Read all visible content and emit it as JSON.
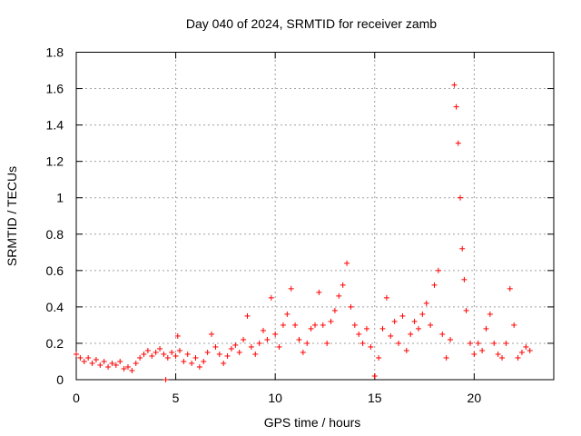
{
  "chart_data": {
    "type": "scatter",
    "title": "Day 040 of 2024, SRMTID for receiver zamb",
    "xlabel": "GPS time / hours",
    "ylabel": "SRMTID / TECUs",
    "xlim": [
      0,
      24
    ],
    "ylim": [
      0,
      1.8
    ],
    "xticks": [
      0,
      5,
      10,
      15,
      20
    ],
    "xtick_labels": [
      "0",
      "5",
      "10",
      "15",
      "20"
    ],
    "yticks": [
      0,
      0.2,
      0.4,
      0.6,
      0.8,
      1.0,
      1.2,
      1.4,
      1.6,
      1.8
    ],
    "ytick_labels": [
      "0",
      "0.2",
      "0.4",
      "0.6",
      "0.8",
      "1",
      "1.2",
      "1.4",
      "1.6",
      "1.8"
    ],
    "grid": true,
    "marker": "plus",
    "series": [
      {
        "name": "SRMTID",
        "color": "#ff0000",
        "points": [
          [
            0.0,
            0.14
          ],
          [
            0.2,
            0.12
          ],
          [
            0.4,
            0.1
          ],
          [
            0.6,
            0.12
          ],
          [
            0.8,
            0.09
          ],
          [
            1.0,
            0.11
          ],
          [
            1.2,
            0.08
          ],
          [
            1.4,
            0.1
          ],
          [
            1.6,
            0.07
          ],
          [
            1.8,
            0.09
          ],
          [
            2.0,
            0.08
          ],
          [
            2.2,
            0.1
          ],
          [
            2.4,
            0.06
          ],
          [
            2.6,
            0.07
          ],
          [
            2.8,
            0.05
          ],
          [
            3.0,
            0.09
          ],
          [
            3.2,
            0.12
          ],
          [
            3.4,
            0.14
          ],
          [
            3.6,
            0.16
          ],
          [
            3.8,
            0.13
          ],
          [
            4.0,
            0.15
          ],
          [
            4.2,
            0.17
          ],
          [
            4.4,
            0.14
          ],
          [
            4.5,
            0.0
          ],
          [
            4.6,
            0.12
          ],
          [
            4.8,
            0.15
          ],
          [
            5.0,
            0.13
          ],
          [
            5.1,
            0.24
          ],
          [
            5.2,
            0.16
          ],
          [
            5.4,
            0.1
          ],
          [
            5.6,
            0.14
          ],
          [
            5.8,
            0.09
          ],
          [
            6.0,
            0.12
          ],
          [
            6.2,
            0.07
          ],
          [
            6.4,
            0.1
          ],
          [
            6.6,
            0.15
          ],
          [
            6.8,
            0.25
          ],
          [
            7.0,
            0.18
          ],
          [
            7.2,
            0.14
          ],
          [
            7.4,
            0.09
          ],
          [
            7.6,
            0.13
          ],
          [
            7.8,
            0.17
          ],
          [
            8.0,
            0.19
          ],
          [
            8.2,
            0.15
          ],
          [
            8.4,
            0.22
          ],
          [
            8.6,
            0.35
          ],
          [
            8.8,
            0.18
          ],
          [
            9.0,
            0.14
          ],
          [
            9.2,
            0.2
          ],
          [
            9.4,
            0.27
          ],
          [
            9.6,
            0.22
          ],
          [
            9.8,
            0.45
          ],
          [
            10.0,
            0.25
          ],
          [
            10.2,
            0.18
          ],
          [
            10.4,
            0.3
          ],
          [
            10.6,
            0.36
          ],
          [
            10.8,
            0.5
          ],
          [
            11.0,
            0.3
          ],
          [
            11.2,
            0.22
          ],
          [
            11.4,
            0.15
          ],
          [
            11.6,
            0.2
          ],
          [
            11.8,
            0.28
          ],
          [
            12.0,
            0.3
          ],
          [
            12.2,
            0.48
          ],
          [
            12.4,
            0.3
          ],
          [
            12.6,
            0.2
          ],
          [
            12.8,
            0.32
          ],
          [
            13.0,
            0.38
          ],
          [
            13.2,
            0.46
          ],
          [
            13.4,
            0.52
          ],
          [
            13.6,
            0.64
          ],
          [
            13.8,
            0.4
          ],
          [
            14.0,
            0.3
          ],
          [
            14.2,
            0.25
          ],
          [
            14.4,
            0.2
          ],
          [
            14.6,
            0.28
          ],
          [
            14.8,
            0.18
          ],
          [
            15.0,
            0.02
          ],
          [
            15.2,
            0.12
          ],
          [
            15.4,
            0.28
          ],
          [
            15.6,
            0.45
          ],
          [
            15.8,
            0.24
          ],
          [
            16.0,
            0.32
          ],
          [
            16.2,
            0.2
          ],
          [
            16.4,
            0.35
          ],
          [
            16.6,
            0.16
          ],
          [
            16.8,
            0.25
          ],
          [
            17.0,
            0.32
          ],
          [
            17.2,
            0.28
          ],
          [
            17.4,
            0.36
          ],
          [
            17.6,
            0.42
          ],
          [
            17.8,
            0.3
          ],
          [
            18.0,
            0.52
          ],
          [
            18.2,
            0.6
          ],
          [
            18.4,
            0.25
          ],
          [
            18.6,
            0.12
          ],
          [
            18.8,
            0.22
          ],
          [
            19.0,
            1.62
          ],
          [
            19.1,
            1.5
          ],
          [
            19.2,
            1.3
          ],
          [
            19.3,
            1.0
          ],
          [
            19.4,
            0.72
          ],
          [
            19.5,
            0.55
          ],
          [
            19.6,
            0.38
          ],
          [
            19.8,
            0.2
          ],
          [
            20.0,
            0.14
          ],
          [
            20.2,
            0.2
          ],
          [
            20.4,
            0.16
          ],
          [
            20.6,
            0.28
          ],
          [
            20.8,
            0.36
          ],
          [
            21.0,
            0.2
          ],
          [
            21.2,
            0.14
          ],
          [
            21.4,
            0.12
          ],
          [
            21.6,
            0.2
          ],
          [
            21.8,
            0.5
          ],
          [
            22.0,
            0.3
          ],
          [
            22.2,
            0.12
          ],
          [
            22.4,
            0.15
          ],
          [
            22.6,
            0.18
          ],
          [
            22.8,
            0.16
          ]
        ]
      }
    ]
  }
}
